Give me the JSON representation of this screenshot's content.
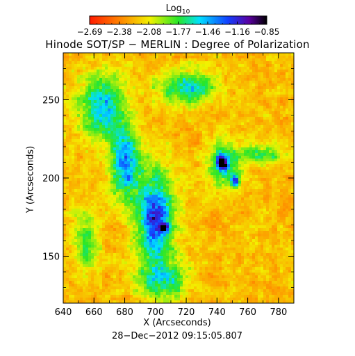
{
  "chart_data": {
    "type": "heatmap",
    "title": "Hinode SOT/SP − MERLIN : Degree of Polarization",
    "xlabel": "X (Arcseconds)",
    "ylabel": "Y (Arcseconds)",
    "xlim": [
      640,
      790
    ],
    "ylim": [
      120,
      280
    ],
    "x_ticks": [
      "640",
      "660",
      "680",
      "700",
      "720",
      "740",
      "760",
      "780"
    ],
    "y_ticks": [
      "150",
      "200",
      "250"
    ],
    "y_tick_values": [
      150,
      200,
      250
    ],
    "colorbar": {
      "title": "Log",
      "title_subscript": "10",
      "range": [
        -2.69,
        -0.85
      ],
      "ticks": [
        "−2.69",
        "−2.38",
        "−2.08",
        "−1.77",
        "−1.46",
        "−1.16",
        "−0.85"
      ],
      "colormap": "rainbow (red → yellow → green → cyan → blue → violet → black)"
    },
    "timestamp": "28−Dec−2012 09:15:05.807",
    "features": [
      {
        "region": "network lane (high polarization)",
        "x": [
          690,
          720
        ],
        "y": [
          150,
          200
        ],
        "level": -1.2
      },
      {
        "region": "strong magnetic element",
        "x": 743,
        "y": 210,
        "level": -1.0
      },
      {
        "region": "strong magnetic element",
        "x": 752,
        "y": 198,
        "level": -1.0
      },
      {
        "region": "strong magnetic element",
        "x": 705,
        "y": 168,
        "level": -1.05
      }
    ]
  }
}
